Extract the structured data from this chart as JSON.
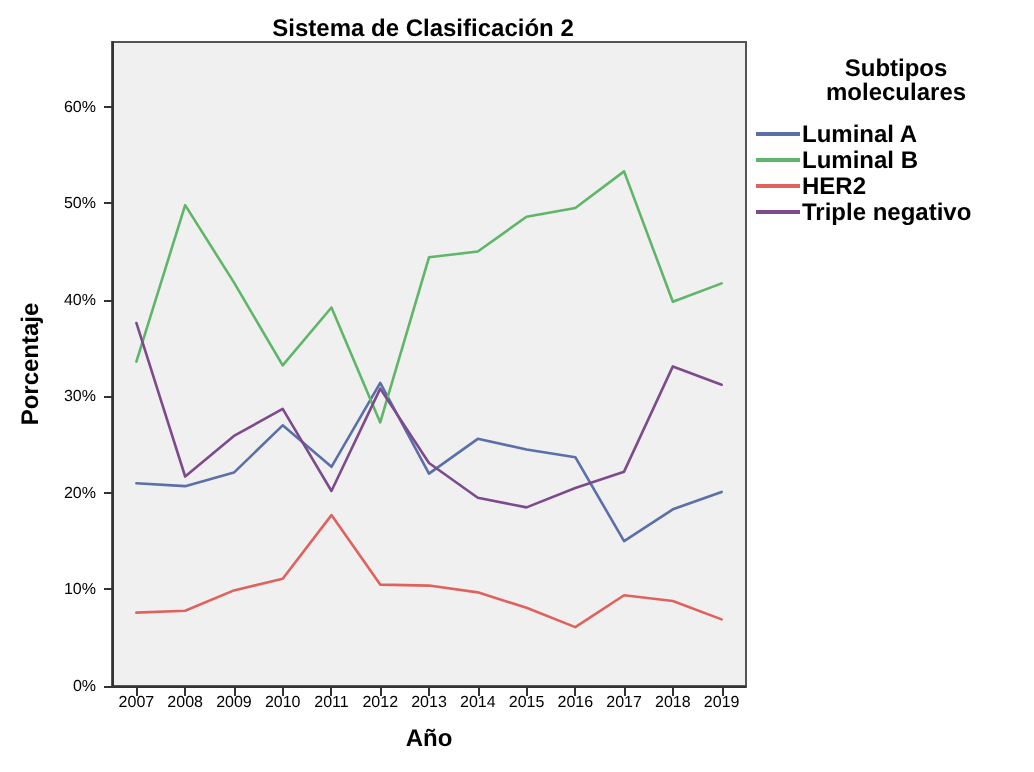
{
  "chart_data": {
    "type": "line",
    "title": "Sistema de Clasificación 2",
    "xlabel": "Año",
    "ylabel": "Porcentaje",
    "legend_title": "Subtipos moleculares",
    "legend": "right",
    "grid": false,
    "marker": "none",
    "line_style": "solid",
    "categories": [
      "2007",
      "2008",
      "2009",
      "2010",
      "2011",
      "2012",
      "2013",
      "2014",
      "2015",
      "2016",
      "2017",
      "2018",
      "2019"
    ],
    "ylim": [
      0,
      66.7
    ],
    "yticks": [
      {
        "value": 0,
        "label": "0%"
      },
      {
        "value": 10,
        "label": "10%"
      },
      {
        "value": 20,
        "label": "20%"
      },
      {
        "value": 30,
        "label": "30%"
      },
      {
        "value": 40,
        "label": "40%"
      },
      {
        "value": 50,
        "label": "50%"
      },
      {
        "value": 60,
        "label": "60%"
      }
    ],
    "series": [
      {
        "name": "Luminal A",
        "color": "#5b6fa8",
        "values": [
          21,
          20.7,
          22.1,
          27,
          22.7,
          31.4,
          22,
          25.6,
          24.5,
          23.7,
          15,
          18.3,
          20.1
        ]
      },
      {
        "name": "Luminal B",
        "color": "#5fb668",
        "values": [
          33.6,
          49.8,
          41.8,
          33.2,
          39.2,
          27.3,
          44.4,
          45,
          48.6,
          49.5,
          53.3,
          39.8,
          41.7
        ]
      },
      {
        "name": "HER2",
        "color": "#e0625e",
        "values": [
          7.6,
          7.8,
          9.9,
          11.1,
          17.7,
          10.5,
          10.4,
          9.7,
          8.1,
          6.1,
          9.4,
          8.8,
          6.9
        ]
      },
      {
        "name": "Triple negativo",
        "color": "#7d4b8c",
        "values": [
          37.6,
          21.7,
          25.9,
          28.7,
          20.2,
          30.8,
          23.1,
          19.5,
          18.5,
          20.5,
          22.2,
          33.1,
          31.2
        ]
      }
    ]
  }
}
